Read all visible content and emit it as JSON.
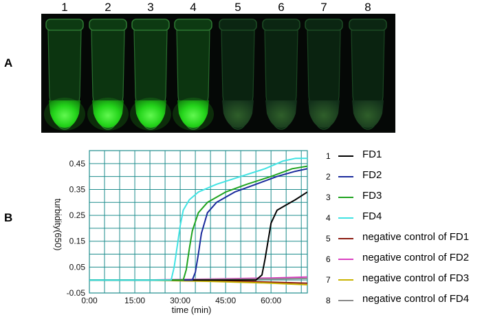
{
  "panel_a": {
    "label": "A",
    "tube_numbers": [
      "1",
      "2",
      "3",
      "4",
      "5",
      "6",
      "7",
      "8"
    ],
    "tube_fluorescence": [
      "bright",
      "bright",
      "bright",
      "bright",
      "dim",
      "dim",
      "dim",
      "dim"
    ]
  },
  "panel_b": {
    "label": "B",
    "legend": [
      {
        "num": "1",
        "label": "FD1",
        "color": "#000000"
      },
      {
        "num": "2",
        "label": "FD2",
        "color": "#1a2a9c"
      },
      {
        "num": "3",
        "label": "FD3",
        "color": "#1ea31e"
      },
      {
        "num": "4",
        "label": "FD4",
        "color": "#3fe3e3"
      },
      {
        "num": "5",
        "label": "negative control of FD1",
        "color": "#8b1a10"
      },
      {
        "num": "6",
        "label": "negative control of FD2",
        "color": "#d93fc0"
      },
      {
        "num": "7",
        "label": "negative control of FD3",
        "color": "#c9b300"
      },
      {
        "num": "8",
        "label": "negative control of FD4",
        "color": "#8a8a8a"
      }
    ]
  },
  "chart_data": {
    "type": "line",
    "xlabel": "time (min)",
    "ylabel": "turbidity(650)",
    "xlim": [
      0,
      72
    ],
    "ylim": [
      -0.05,
      0.5
    ],
    "grid": true,
    "legend_placement": "right",
    "x_ticks": [
      {
        "v": 0,
        "label": "0:00"
      },
      {
        "v": 15,
        "label": "15:00"
      },
      {
        "v": 30,
        "label": "30:00"
      },
      {
        "v": 45,
        "label": "45:00"
      },
      {
        "v": 60,
        "label": "60:00"
      }
    ],
    "y_ticks": [
      {
        "v": -0.05,
        "label": "-0.05"
      },
      {
        "v": 0.05,
        "label": "0.05"
      },
      {
        "v": 0.15,
        "label": "0.15"
      },
      {
        "v": 0.25,
        "label": "0.25"
      },
      {
        "v": 0.35,
        "label": "0.35"
      },
      {
        "v": 0.45,
        "label": "0.45"
      }
    ],
    "series": [
      {
        "name": "FD1",
        "color": "#000000",
        "x": [
          0,
          55,
          57,
          58,
          59,
          60,
          62,
          65,
          68,
          72
        ],
        "y": [
          0,
          0,
          0.02,
          0.08,
          0.15,
          0.22,
          0.27,
          0.29,
          0.31,
          0.34
        ]
      },
      {
        "name": "FD2",
        "color": "#1a2a9c",
        "x": [
          0,
          34,
          35,
          36,
          37,
          39,
          42,
          48,
          55,
          62,
          68,
          72
        ],
        "y": [
          0,
          0,
          0.03,
          0.1,
          0.18,
          0.26,
          0.3,
          0.34,
          0.37,
          0.4,
          0.42,
          0.43
        ]
      },
      {
        "name": "FD3",
        "color": "#1ea31e",
        "x": [
          0,
          31,
          32,
          33,
          34,
          36,
          39,
          45,
          52,
          60,
          67,
          72
        ],
        "y": [
          0,
          0,
          0.04,
          0.12,
          0.19,
          0.26,
          0.3,
          0.34,
          0.37,
          0.4,
          0.43,
          0.44
        ]
      },
      {
        "name": "FD4",
        "color": "#3fe3e3",
        "x": [
          0,
          27,
          28,
          29,
          30,
          31,
          33,
          36,
          42,
          50,
          58,
          64,
          68,
          72
        ],
        "y": [
          0,
          0,
          0.05,
          0.13,
          0.21,
          0.27,
          0.31,
          0.34,
          0.37,
          0.4,
          0.43,
          0.46,
          0.47,
          0.47
        ]
      },
      {
        "name": "negative control of FD1",
        "color": "#8b1a10",
        "x": [
          0,
          18,
          40,
          60,
          72
        ],
        "y": [
          0,
          0,
          -0.002,
          -0.008,
          -0.012
        ]
      },
      {
        "name": "negative control of FD2",
        "color": "#d93fc0",
        "x": [
          0,
          18,
          40,
          60,
          72
        ],
        "y": [
          0,
          0,
          0.004,
          0.008,
          0.012
        ]
      },
      {
        "name": "negative control of FD3",
        "color": "#c9b300",
        "x": [
          0,
          18,
          40,
          60,
          72
        ],
        "y": [
          0,
          0,
          -0.005,
          -0.012,
          -0.018
        ]
      },
      {
        "name": "negative control of FD4",
        "color": "#8a8a8a",
        "x": [
          0,
          18,
          40,
          60,
          72
        ],
        "y": [
          0,
          0,
          0.002,
          0.004,
          0.006
        ]
      }
    ]
  }
}
